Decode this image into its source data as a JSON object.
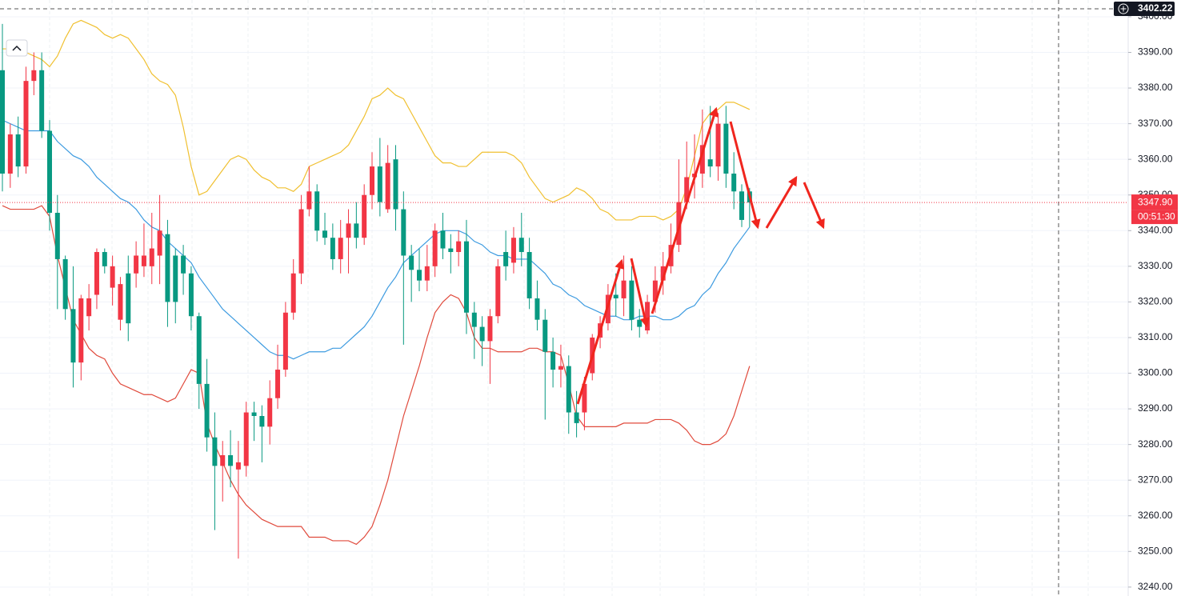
{
  "chart_data": {
    "type": "candlestick",
    "up_color": "#f23645",
    "down_color": "#089981",
    "ylim": [
      3237.5,
      3404.7
    ],
    "yticks": [
      {
        "value": 3400,
        "label": "3400.00"
      },
      {
        "value": 3390,
        "label": "3390.00"
      },
      {
        "value": 3380,
        "label": "3380.00"
      },
      {
        "value": 3370,
        "label": "3370.00"
      },
      {
        "value": 3360,
        "label": "3360.00"
      },
      {
        "value": 3350,
        "label": "3350.00"
      },
      {
        "value": 3340,
        "label": "3340.00"
      },
      {
        "value": 3330,
        "label": "3330.00"
      },
      {
        "value": 3320,
        "label": "3320.00"
      },
      {
        "value": 3310,
        "label": "3310.00"
      },
      {
        "value": 3300,
        "label": "3300.00"
      },
      {
        "value": 3290,
        "label": "3290.00"
      },
      {
        "value": 3280,
        "label": "3280.00"
      },
      {
        "value": 3270,
        "label": "3270.00"
      },
      {
        "value": 3260,
        "label": "3260.00"
      },
      {
        "value": 3250,
        "label": "3250.00"
      },
      {
        "value": 3240,
        "label": "3240.00"
      }
    ],
    "grid": true,
    "open": [
      3385,
      3356,
      3367,
      3358,
      3382,
      3385,
      3368,
      3345,
      3332,
      3318,
      3303,
      3316,
      3322,
      3334,
      3324,
      3315,
      3328,
      3328,
      3330,
      3330,
      3333,
      3339,
      3333,
      3333,
      3328,
      3316,
      3297,
      3282,
      3274,
      3277,
      3273,
      3274,
      3289,
      3288,
      3285,
      3293,
      3301,
      3317,
      3328,
      3346,
      3351,
      3340,
      3338,
      3332,
      3338,
      3342,
      3338,
      3350,
      3358,
      3346,
      3360,
      3346,
      3333,
      3329,
      3326,
      3330,
      3340,
      3335,
      3334,
      3337,
      3317,
      3313,
      3309,
      3316,
      3334,
      3331,
      3338,
      3334,
      3321,
      3315,
      3306,
      3301,
      3302,
      3289,
      3289,
      3300,
      3310,
      3314,
      3322,
      3321,
      3326,
      3315,
      3312,
      3320,
      3326,
      3330,
      3336,
      3348,
      3355,
      3356,
      3360,
      3358,
      3370,
      3356,
      3351,
      3351
    ],
    "high": [
      3398,
      3370,
      3372,
      3386,
      3390,
      3390,
      3371,
      3350,
      3333,
      3330,
      3322,
      3325,
      3335,
      3335,
      3333,
      3327,
      3333,
      3337,
      3342,
      3345,
      3350,
      3343,
      3335,
      3336,
      3330,
      3317,
      3304,
      3289,
      3281,
      3284,
      3281,
      3292,
      3292,
      3291,
      3298,
      3308,
      3320,
      3332,
      3350,
      3358,
      3353,
      3345,
      3342,
      3343,
      3346,
      3348,
      3353,
      3362,
      3366,
      3364,
      3364,
      3351,
      3336,
      3335,
      3336,
      3342,
      3345,
      3339,
      3340,
      3343,
      3320,
      3316,
      3318,
      3332,
      3340,
      3341,
      3345,
      3338,
      3326,
      3318,
      3310,
      3308,
      3305,
      3295,
      3299,
      3311,
      3316,
      3325,
      3328,
      3333,
      3330,
      3318,
      3322,
      3330,
      3334,
      3342,
      3360,
      3365,
      3367,
      3374,
      3375,
      3373,
      3375,
      3362,
      3353,
      3352
    ],
    "low": [
      3351,
      3352,
      3355,
      3356,
      3378,
      3366,
      3340,
      3318,
      3315,
      3296,
      3298,
      3312,
      3318,
      3328,
      3319,
      3312,
      3309,
      3324,
      3327,
      3325,
      3325,
      3313,
      3314,
      3322,
      3312,
      3290,
      3278,
      3256,
      3264,
      3268,
      3248,
      3271,
      3281,
      3275,
      3280,
      3290,
      3299,
      3315,
      3325,
      3344,
      3337,
      3336,
      3329,
      3328,
      3328,
      3335,
      3336,
      3346,
      3344,
      3345,
      3340,
      3308,
      3320,
      3323,
      3323,
      3327,
      3332,
      3328,
      3330,
      3311,
      3304,
      3302,
      3297,
      3314,
      3326,
      3328,
      3330,
      3318,
      3312,
      3287,
      3296,
      3296,
      3283,
      3282,
      3284,
      3298,
      3307,
      3312,
      3316,
      3316,
      3312,
      3310,
      3311,
      3317,
      3322,
      3328,
      3334,
      3346,
      3349,
      3352,
      3355,
      3354,
      3352,
      3346,
      3341,
      3341
    ],
    "close": [
      3356,
      3367,
      3358,
      3382,
      3385,
      3368,
      3345,
      3332,
      3318,
      3303,
      3321,
      3321,
      3334,
      3330,
      3330,
      3325,
      3314,
      3333,
      3333,
      3335,
      3340,
      3320,
      3320,
      3328,
      3316,
      3297,
      3282,
      3274,
      3277,
      3274,
      3275,
      3289,
      3288,
      3285,
      3293,
      3301,
      3317,
      3328,
      3346,
      3351,
      3340,
      3338,
      3332,
      3338,
      3342,
      3338,
      3350,
      3358,
      3348,
      3359,
      3346,
      3333,
      3329,
      3326,
      3330,
      3340,
      3335,
      3334,
      3337,
      3317,
      3313,
      3309,
      3316,
      3330,
      3330,
      3338,
      3334,
      3321,
      3315,
      3306,
      3301,
      3302,
      3289,
      3286,
      3297,
      3310,
      3314,
      3322,
      3321,
      3326,
      3315,
      3313,
      3320,
      3326,
      3330,
      3336,
      3348,
      3355,
      3356,
      3364,
      3358,
      3370,
      3356,
      3351,
      3343,
      3347.9
    ],
    "lines": [
      {
        "color": "#f0c030",
        "values": [
          3391,
          3391,
          3391,
          3390,
          3389,
          3388,
          3386,
          3389,
          3394,
          3398,
          3399,
          3398,
          3397,
          3395,
          3394,
          3395,
          3394,
          3391,
          3388,
          3384,
          3382,
          3381,
          3378,
          3369,
          3358,
          3350,
          3351,
          3354,
          3357,
          3360,
          3361,
          3360,
          3357,
          3355,
          3354,
          3352,
          3352,
          3351,
          3353,
          3358,
          3359,
          3360,
          3361,
          3362,
          3364,
          3368,
          3372,
          3377,
          3378,
          3380,
          3378,
          3377,
          3373,
          3369,
          3365,
          3361,
          3359,
          3359,
          3358,
          3358,
          3360,
          3362,
          3362,
          3362,
          3362,
          3361,
          3359,
          3355,
          3352,
          3349,
          3348,
          3349,
          3350,
          3352,
          3351,
          3349,
          3346,
          3345,
          3343,
          3343,
          3343,
          3344,
          3344,
          3344,
          3343,
          3344,
          3346,
          3352,
          3361,
          3370,
          3373,
          3374,
          3376,
          3376,
          3375,
          3374
        ]
      },
      {
        "color": "#3d9be0",
        "values": [
          3371,
          3370,
          3369,
          3368,
          3368,
          3368,
          3368,
          3365,
          3363,
          3361,
          3360,
          3358,
          3355,
          3353,
          3351,
          3349,
          3348,
          3346,
          3343,
          3341,
          3340,
          3337,
          3335,
          3333,
          3331,
          3327,
          3324,
          3321,
          3318,
          3316,
          3314,
          3312,
          3310,
          3308,
          3306,
          3305,
          3305,
          3304,
          3305,
          3306,
          3306,
          3306,
          3307,
          3307,
          3309,
          3311,
          3313,
          3316,
          3320,
          3324,
          3327,
          3331,
          3333,
          3335,
          3337,
          3339,
          3340,
          3340,
          3340,
          3339,
          3337,
          3336,
          3334,
          3333,
          3333,
          3332,
          3332,
          3332,
          3330,
          3328,
          3325,
          3324,
          3322,
          3321,
          3319,
          3318,
          3317,
          3316,
          3316,
          3315,
          3315,
          3316,
          3316,
          3316,
          3315,
          3315,
          3316,
          3318,
          3319,
          3322,
          3324,
          3328,
          3331,
          3335,
          3338,
          3341
        ]
      },
      {
        "color": "#e04a3c",
        "values": [
          3347,
          3346,
          3346,
          3346,
          3346,
          3347,
          3344,
          3333,
          3324,
          3315,
          3311,
          3307,
          3305,
          3304,
          3300,
          3297,
          3296,
          3295,
          3294,
          3294,
          3293,
          3292,
          3293,
          3297,
          3301,
          3300,
          3286,
          3280,
          3275,
          3270,
          3266,
          3263,
          3261,
          3259,
          3258,
          3257,
          3257,
          3257,
          3257,
          3254,
          3254,
          3254,
          3253,
          3253,
          3253,
          3252,
          3254,
          3257,
          3263,
          3270,
          3279,
          3288,
          3295,
          3302,
          3310,
          3317,
          3320,
          3322,
          3321,
          3317,
          3310,
          3307,
          3307,
          3306,
          3306,
          3306,
          3306,
          3307,
          3307,
          3306,
          3306,
          3305,
          3297,
          3288,
          3285,
          3285,
          3285,
          3285,
          3285,
          3286,
          3286,
          3286,
          3286,
          3287,
          3287,
          3287,
          3286,
          3284,
          3281,
          3280,
          3280,
          3281,
          3283,
          3288,
          3295,
          3302
        ]
      }
    ],
    "last_price": {
      "value": 3347.9,
      "label": "3347.90"
    },
    "last_price_color": "#f23645",
    "countdown": "00:51:30",
    "crosshair_price": {
      "value": 3402.22,
      "label": "3402.22"
    }
  }
}
